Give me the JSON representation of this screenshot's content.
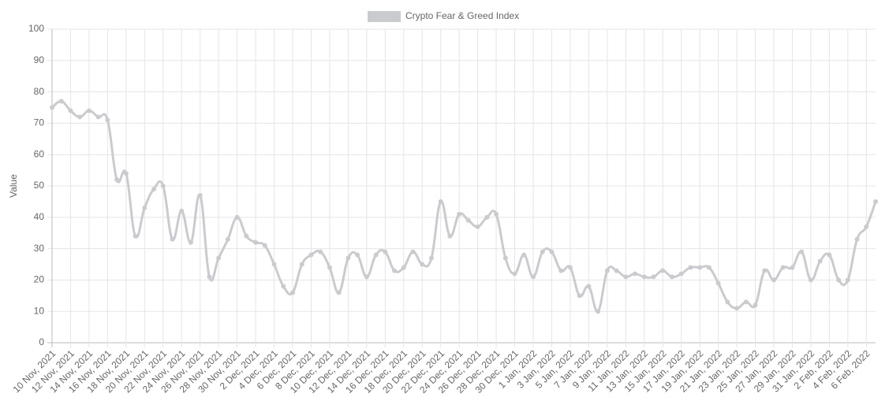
{
  "chart_data": {
    "type": "line",
    "y_label": "Value",
    "categories": [
      "10 Nov, 2021",
      null,
      "12 Nov, 2021",
      null,
      "14 Nov, 2021",
      null,
      "16 Nov, 2021",
      null,
      "18 Nov, 2021",
      null,
      "20 Nov, 2021",
      null,
      "22 Nov, 2021",
      null,
      "24 Nov, 2021",
      null,
      "26 Nov, 2021",
      null,
      "28 Nov, 2021",
      null,
      "30 Nov, 2021",
      null,
      "2 Dec, 2021",
      null,
      "4 Dec, 2021",
      null,
      "6 Dec, 2021",
      null,
      "8 Dec, 2021",
      null,
      "10 Dec, 2021",
      null,
      "12 Dec, 2021",
      null,
      "14 Dec, 2021",
      null,
      "16 Dec, 2021",
      null,
      "18 Dec, 2021",
      null,
      "20 Dec, 2021",
      null,
      "22 Dec, 2021",
      null,
      "24 Dec, 2021",
      null,
      "26 Dec, 2021",
      null,
      "28 Dec, 2021",
      null,
      "30 Dec, 2021",
      null,
      "1 Jan, 2022",
      null,
      "3 Jan, 2022",
      null,
      "5 Jan, 2022",
      null,
      "7 Jan, 2022",
      null,
      "9 Jan, 2022",
      null,
      "11 Jan, 2022",
      null,
      "13 Jan, 2022",
      null,
      "15 Jan, 2022",
      null,
      "17 Jan, 2022",
      null,
      "19 Jan, 2022",
      null,
      "21 Jan, 2022",
      null,
      "23 Jan, 2022",
      null,
      "25 Jan, 2022",
      null,
      "27 Jan, 2022",
      null,
      "29 Jan, 2022",
      null,
      "31 Jan, 2022",
      null,
      "2 Feb, 2022",
      null,
      "4 Feb, 2022",
      null,
      "6 Feb, 2022",
      null
    ],
    "series": [
      {
        "name": "Crypto Fear & Greed Index",
        "color": "#c9cbcf",
        "values": [
          75,
          77,
          74,
          72,
          74,
          72,
          71,
          52,
          54,
          34,
          43,
          49,
          50,
          33,
          42,
          32,
          47,
          21,
          27,
          33,
          40,
          34,
          32,
          31,
          25,
          18,
          16,
          25,
          28,
          29,
          24,
          16,
          27,
          28,
          21,
          28,
          29,
          23,
          24,
          29,
          25,
          27,
          45,
          34,
          41,
          39,
          37,
          40,
          41,
          27,
          22,
          28,
          21,
          29,
          29,
          23,
          24,
          15,
          18,
          10,
          23,
          23,
          21,
          22,
          21,
          21,
          23,
          21,
          22,
          24,
          24,
          24,
          19,
          13,
          11,
          13,
          12,
          23,
          20,
          24,
          24,
          29,
          20,
          26,
          28,
          20,
          20,
          33,
          37,
          45
        ]
      }
    ],
    "ylim": [
      0,
      100
    ],
    "yticks": [
      0,
      10,
      20,
      30,
      40,
      50,
      60,
      70,
      80,
      90,
      100
    ],
    "grid": true,
    "legend": "top"
  }
}
